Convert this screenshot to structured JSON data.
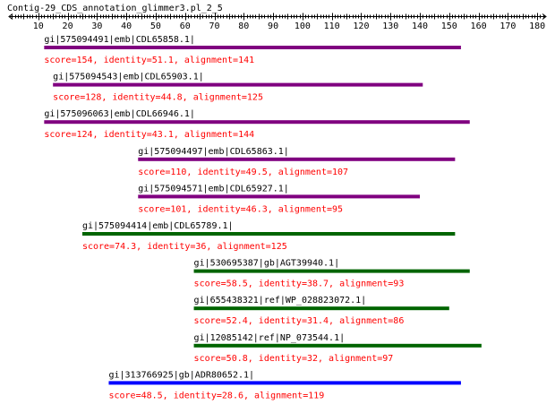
{
  "title": "Contig-29_CDS_annotation_glimmer3.pl_2_5",
  "ruler": {
    "labels": [
      "10",
      "20",
      "30",
      "40",
      "50",
      "60",
      "70",
      "80",
      "90",
      "100",
      "110",
      "120",
      "130",
      "140",
      "150",
      "160",
      "170",
      "180"
    ],
    "domain": [
      0,
      183
    ]
  },
  "colors": {
    "title": "#000000",
    "axis": "#000000",
    "label": "#000000",
    "score": "#ff0000",
    "purple": "#800080",
    "green": "#006400",
    "blue": "#0000ff"
  },
  "hits": [
    {
      "id": "gi|575094491|emb|CDL65858.1|",
      "score_text": "score=154, identity=51.1, alignment=141",
      "start": 12,
      "end": 154,
      "color": "purple"
    },
    {
      "id": "gi|575094543|emb|CDL65903.1|",
      "score_text": "score=128, identity=44.8, alignment=125",
      "start": 15,
      "end": 141,
      "color": "purple"
    },
    {
      "id": "gi|575096063|emb|CDL66946.1|",
      "score_text": "score=124, identity=43.1, alignment=144",
      "start": 12,
      "end": 157,
      "color": "purple"
    },
    {
      "id": "gi|575094497|emb|CDL65863.1|",
      "score_text": "score=110, identity=49.5, alignment=107",
      "start": 44,
      "end": 152,
      "color": "purple"
    },
    {
      "id": "gi|575094571|emb|CDL65927.1|",
      "score_text": "score=101, identity=46.3, alignment=95",
      "start": 44,
      "end": 140,
      "color": "purple"
    },
    {
      "id": "gi|575094414|emb|CDL65789.1|",
      "score_text": "score=74.3, identity=36, alignment=125",
      "start": 25,
      "end": 152,
      "color": "green"
    },
    {
      "id": "gi|530695387|gb|AGT39940.1|",
      "score_text": "score=58.5, identity=38.7, alignment=93",
      "start": 63,
      "end": 157,
      "color": "green"
    },
    {
      "id": "gi|655438321|ref|WP_028823072.1|",
      "score_text": "score=52.4, identity=31.4, alignment=86",
      "start": 63,
      "end": 150,
      "color": "green"
    },
    {
      "id": "gi|12085142|ref|NP_073544.1|",
      "score_text": "score=50.8, identity=32, alignment=97",
      "start": 63,
      "end": 161,
      "color": "green"
    },
    {
      "id": "gi|313766925|gb|ADR80652.1|",
      "score_text": "score=48.5, identity=28.6, alignment=119",
      "start": 34,
      "end": 154,
      "color": "blue"
    }
  ]
}
